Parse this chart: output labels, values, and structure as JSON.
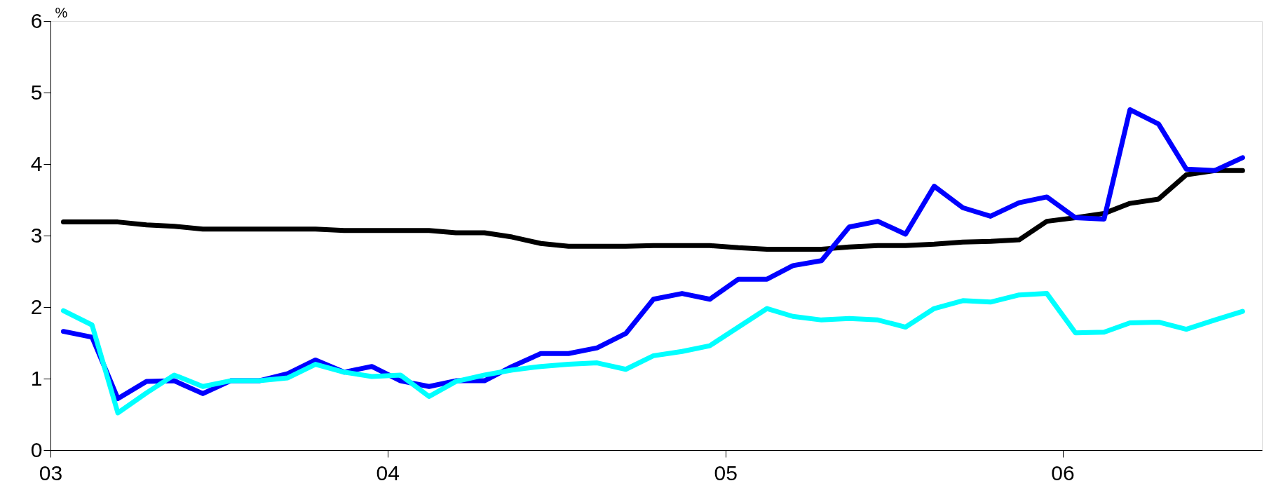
{
  "chart_data": {
    "type": "line",
    "ylabel": "%",
    "x": [
      "2003-01-15",
      "2003-02-15",
      "2003-03-15",
      "2003-04-15",
      "2003-05-15",
      "2003-06-15",
      "2003-07-15",
      "2003-08-15",
      "2003-09-15",
      "2003-10-15",
      "2003-11-15",
      "2003-12-15",
      "2004-01-15",
      "2004-02-15",
      "2004-03-15",
      "2004-04-15",
      "2004-05-15",
      "2004-06-15",
      "2004-07-15",
      "2004-08-15",
      "2004-09-15",
      "2004-10-15",
      "2004-11-15",
      "2004-12-15",
      "2005-01-15",
      "2005-02-15",
      "2005-03-15",
      "2005-04-15",
      "2005-05-15",
      "2005-06-15",
      "2005-07-15",
      "2005-08-15",
      "2005-09-15",
      "2005-10-15",
      "2005-11-15",
      "2005-12-15",
      "2006-01-15",
      "2006-02-15",
      "2006-03-15",
      "2006-04-15",
      "2006-05-15",
      "2006-06-15",
      "2006-07-15"
    ],
    "series": [
      {
        "color": "#000000",
        "values": [
          3.19,
          3.19,
          3.19,
          3.15,
          3.13,
          3.09,
          3.09,
          3.09,
          3.09,
          3.09,
          3.07,
          3.07,
          3.07,
          3.07,
          3.04,
          3.04,
          2.98,
          2.89,
          2.85,
          2.85,
          2.85,
          2.86,
          2.86,
          2.86,
          2.83,
          2.81,
          2.81,
          2.81,
          2.84,
          2.86,
          2.86,
          2.88,
          2.91,
          2.92,
          2.94,
          3.2,
          3.25,
          3.31,
          3.45,
          3.51,
          3.85,
          3.91,
          3.91
        ]
      },
      {
        "color": "#0000ff",
        "values": [
          1.66,
          1.58,
          0.72,
          0.96,
          0.97,
          0.79,
          0.97,
          0.97,
          1.07,
          1.26,
          1.09,
          1.17,
          0.97,
          0.89,
          0.97,
          0.97,
          1.17,
          1.35,
          1.35,
          1.43,
          1.63,
          2.11,
          2.19,
          2.11,
          2.39,
          2.39,
          2.58,
          2.65,
          3.12,
          3.2,
          3.02,
          3.69,
          3.39,
          3.27,
          3.46,
          3.54,
          3.25,
          3.23,
          4.76,
          4.56,
          3.93,
          3.91,
          4.09
        ]
      },
      {
        "color": "#00ffff",
        "values": [
          1.95,
          1.75,
          0.52,
          0.8,
          1.05,
          0.89,
          0.97,
          0.97,
          1.01,
          1.2,
          1.09,
          1.03,
          1.05,
          0.75,
          0.96,
          1.05,
          1.12,
          1.17,
          1.2,
          1.22,
          1.13,
          1.32,
          1.38,
          1.46,
          1.72,
          1.98,
          1.87,
          1.82,
          1.84,
          1.82,
          1.72,
          1.98,
          2.09,
          2.07,
          2.17,
          2.19,
          1.64,
          1.65,
          1.78,
          1.79,
          1.69,
          1.82,
          1.94
        ]
      }
    ],
    "xlim": [
      "2003-01-01",
      "2006-08-05"
    ],
    "xticks": [
      {
        "value": "2003-01-01",
        "label": "03"
      },
      {
        "value": "2004-01-01",
        "label": "04"
      },
      {
        "value": "2005-01-01",
        "label": "05"
      },
      {
        "value": "2006-01-01",
        "label": "06"
      }
    ],
    "ylim": [
      0,
      6
    ],
    "yticks": [
      0,
      1,
      2,
      3,
      4,
      5,
      6
    ],
    "grid": false,
    "line_style": "solid",
    "marker": "none"
  }
}
